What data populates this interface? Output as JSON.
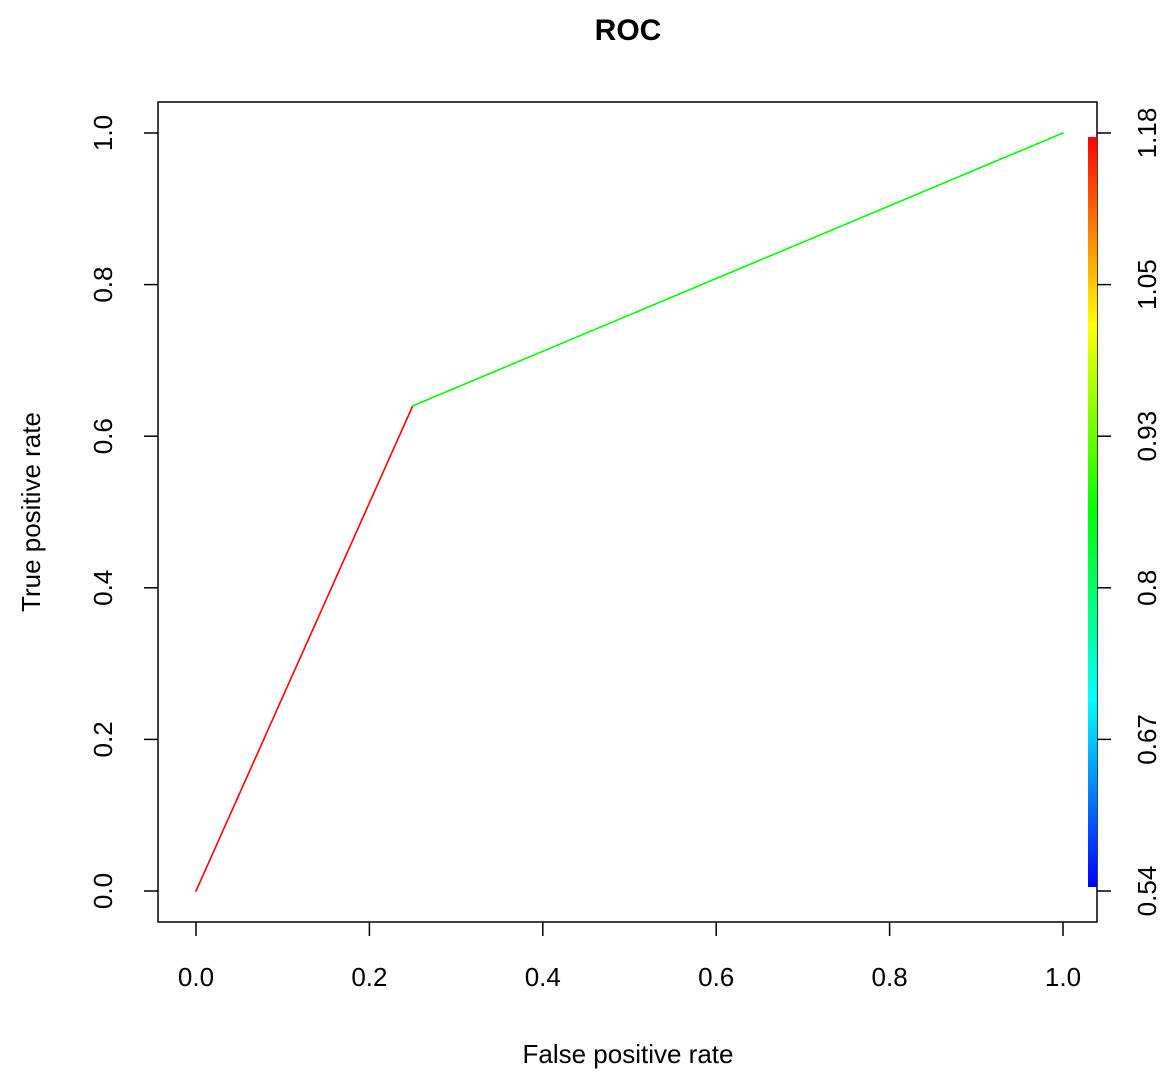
{
  "chart_data": {
    "type": "line",
    "title": "ROC",
    "xlabel": "False positive rate",
    "ylabel": "True positive rate",
    "xlim": [
      0,
      1
    ],
    "ylim": [
      0,
      1
    ],
    "x_ticks": [
      "0.0",
      "0.2",
      "0.4",
      "0.6",
      "0.8",
      "1.0"
    ],
    "y_ticks": [
      "0.0",
      "0.2",
      "0.4",
      "0.6",
      "0.8",
      "1.0"
    ],
    "grid": false,
    "series": [
      {
        "points": [
          {
            "x": 0.0,
            "y": 0.0
          },
          {
            "x": 0.25,
            "y": 0.64
          },
          {
            "x": 1.0,
            "y": 1.0
          }
        ],
        "segment_colors": [
          "#ff0000",
          "#00ff00"
        ]
      }
    ],
    "colorbar": {
      "ticks": [
        "0.54",
        "0.67",
        "0.8",
        "0.93",
        "1.05",
        "1.18"
      ],
      "range": [
        0.54,
        1.18
      ],
      "gradient": [
        "#0000ff",
        "#00ffff",
        "#00ff00",
        "#ffff00",
        "#ff0000"
      ]
    }
  }
}
